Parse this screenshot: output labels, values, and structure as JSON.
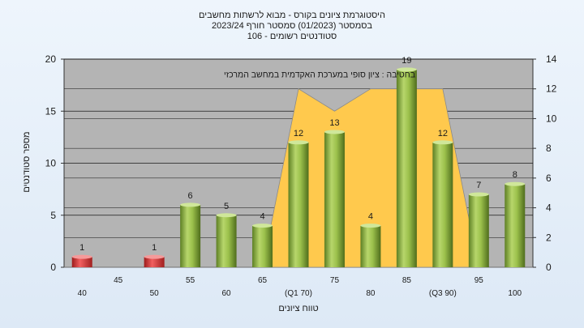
{
  "chart_data": {
    "type": "bar",
    "title_lines": [
      "היסטוגרמת ציונים בקורס - מבוא לרשתות מחשבים",
      "בסמסטר  (01/2023)  סמסטר חורף  2023/24",
      "סטודנטים רשומים - 106"
    ],
    "xlabel": "טווח ציונים",
    "ylabel": "מספר סטודנטים",
    "annotation": "בחטיבה : ציון סופי במערכת האקדמית במחשב המרכזי",
    "categories": [
      "40",
      "45",
      "50",
      "55",
      "60",
      "65",
      "(Q1 70)",
      "75",
      "80",
      "85",
      "(Q3 90)",
      "95",
      "100"
    ],
    "values": [
      1,
      0,
      1,
      6,
      5,
      4,
      12,
      13,
      4,
      19,
      12,
      7,
      8
    ],
    "value_labels": [
      "1",
      "",
      "1",
      "6",
      "5",
      "4",
      "12",
      "13",
      "4",
      "19",
      "12",
      "7",
      "8"
    ],
    "bar_colors": [
      "red",
      "",
      "red",
      "green",
      "green",
      "green",
      "green",
      "green",
      "green",
      "green",
      "green",
      "green",
      "green"
    ],
    "ylim": [
      0,
      20
    ],
    "yticks": [
      0,
      5,
      10,
      15,
      20
    ],
    "y2lim": [
      0,
      14
    ],
    "y2ticks": [
      0,
      2,
      4,
      6,
      8,
      10,
      12,
      14
    ],
    "overlay_profile": [
      0,
      0,
      0,
      0,
      0,
      0,
      12,
      10.5,
      12,
      12,
      12,
      0,
      0
    ],
    "grid": true,
    "colors": {
      "plot_bg": "#b4b4b4",
      "overlay": "#ffc94d",
      "bar_green": "#8fb441",
      "bar_red": "#dd3434",
      "grid": "#1a1a1a"
    }
  }
}
